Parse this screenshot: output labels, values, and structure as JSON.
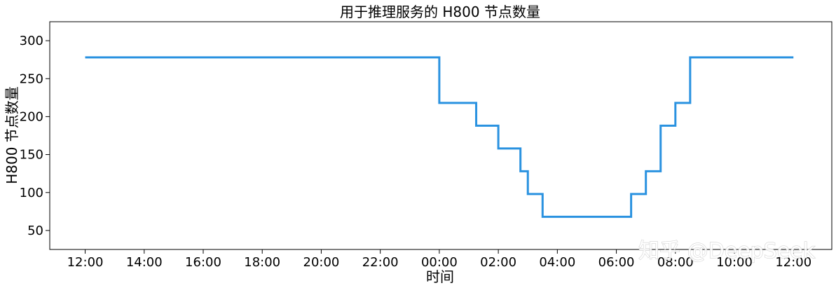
{
  "chart_data": {
    "type": "line",
    "title": "用于推理服务的 H800 节点数量",
    "xlabel": "时间",
    "ylabel": "H800 节点数量",
    "x_tick_labels": [
      "12:00",
      "14:00",
      "16:00",
      "18:00",
      "20:00",
      "22:00",
      "00:00",
      "02:00",
      "04:00",
      "06:00",
      "08:00",
      "10:00",
      "12:00"
    ],
    "y_ticks": [
      50,
      100,
      150,
      200,
      250,
      300
    ],
    "ylim": [
      25,
      325
    ],
    "x_unit": "hours since 12:00",
    "xlim": [
      -1.2,
      25.3
    ],
    "step": "post",
    "color": "#2a92e0",
    "grid": false,
    "points": [
      {
        "x": 0,
        "y": 278
      },
      {
        "x": 12.0,
        "y": 218
      },
      {
        "x": 13.25,
        "y": 188
      },
      {
        "x": 14.0,
        "y": 158
      },
      {
        "x": 14.75,
        "y": 128
      },
      {
        "x": 15.0,
        "y": 98
      },
      {
        "x": 15.5,
        "y": 68
      },
      {
        "x": 18.5,
        "y": 98
      },
      {
        "x": 19.0,
        "y": 128
      },
      {
        "x": 19.5,
        "y": 188
      },
      {
        "x": 20.0,
        "y": 218
      },
      {
        "x": 20.5,
        "y": 278
      },
      {
        "x": 24.0,
        "y": 278
      }
    ]
  },
  "watermark": {
    "text": "知乎 @DeepSeek"
  }
}
